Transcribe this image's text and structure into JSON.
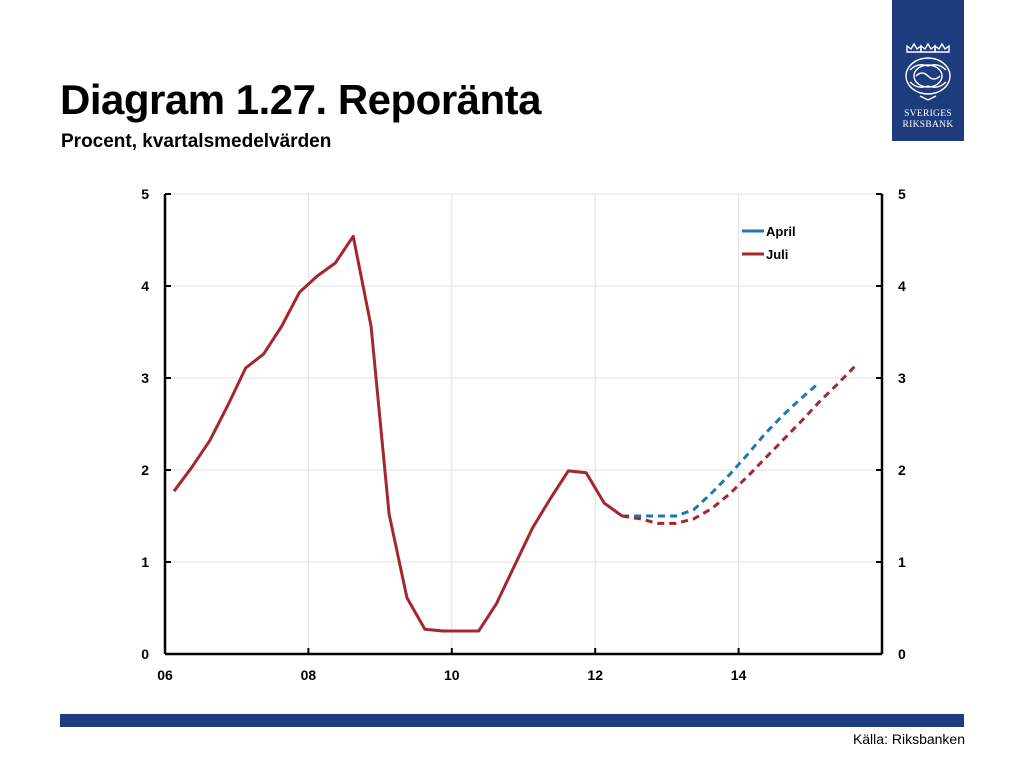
{
  "header": {
    "title": "Diagram 1.27. Reporänta",
    "subtitle": "Procent, kvartalsmedelvärden"
  },
  "logo": {
    "line1": "SVERIGES",
    "line2": "RIKSBANK",
    "background": "#1d3c7d"
  },
  "footer": {
    "source": "Källa: Riksbanken",
    "bar_color": "#1d3c7d"
  },
  "chart_data": {
    "type": "line",
    "title": "Diagram 1.27. Reporänta",
    "subtitle": "Procent, kvartalsmedelvärden",
    "xlabel": "",
    "ylabel": "",
    "xlim": [
      2006.0,
      2016.0
    ],
    "ylim": [
      0,
      5
    ],
    "y_ticks": [
      0,
      1,
      2,
      3,
      4,
      5
    ],
    "x_ticks": [
      {
        "value": 2006,
        "label": "06"
      },
      {
        "value": 2008,
        "label": "08"
      },
      {
        "value": 2010,
        "label": "10"
      },
      {
        "value": 2012,
        "label": "12"
      },
      {
        "value": 2014,
        "label": "14"
      }
    ],
    "grid": true,
    "legend_position": "top-right",
    "series": [
      {
        "name": "April",
        "color": "#1f77b4",
        "style": "dashed",
        "x": [
          2012.375,
          2012.625,
          2012.875,
          2013.125,
          2013.375,
          2013.625,
          2013.875,
          2014.125,
          2014.375,
          2014.625,
          2014.875,
          2015.125
        ],
        "values": [
          1.5,
          1.5,
          1.5,
          1.5,
          1.57,
          1.75,
          1.95,
          2.17,
          2.4,
          2.6,
          2.78,
          2.95
        ]
      },
      {
        "name": "Juli",
        "color": "#a4272d",
        "style": "solid",
        "x": [
          2006.125,
          2006.375,
          2006.625,
          2006.875,
          2007.125,
          2007.375,
          2007.625,
          2007.875,
          2008.125,
          2008.375,
          2008.625,
          2008.875,
          2009.125,
          2009.375,
          2009.625,
          2009.875,
          2010.125,
          2010.375,
          2010.625,
          2010.875,
          2011.125,
          2011.375,
          2011.625,
          2011.875,
          2012.125,
          2012.375
        ],
        "values": [
          1.77,
          2.03,
          2.32,
          2.7,
          3.11,
          3.26,
          3.56,
          3.93,
          4.11,
          4.25,
          4.54,
          3.56,
          1.52,
          0.61,
          0.27,
          0.25,
          0.25,
          0.25,
          0.55,
          0.96,
          1.37,
          1.69,
          1.99,
          1.97,
          1.64,
          1.5
        ]
      },
      {
        "name": "Juli",
        "color": "#a4272d",
        "style": "dashed",
        "x": [
          2012.375,
          2012.625,
          2012.875,
          2013.125,
          2013.375,
          2013.625,
          2013.875,
          2014.125,
          2014.375,
          2014.625,
          2014.875,
          2015.125,
          2015.375,
          2015.625
        ],
        "values": [
          1.5,
          1.47,
          1.42,
          1.42,
          1.47,
          1.58,
          1.74,
          1.93,
          2.13,
          2.33,
          2.53,
          2.74,
          2.93,
          3.13
        ]
      }
    ],
    "legend": [
      {
        "label": "April",
        "color": "#1f77b4"
      },
      {
        "label": "Juli",
        "color": "#a4272d"
      }
    ]
  }
}
